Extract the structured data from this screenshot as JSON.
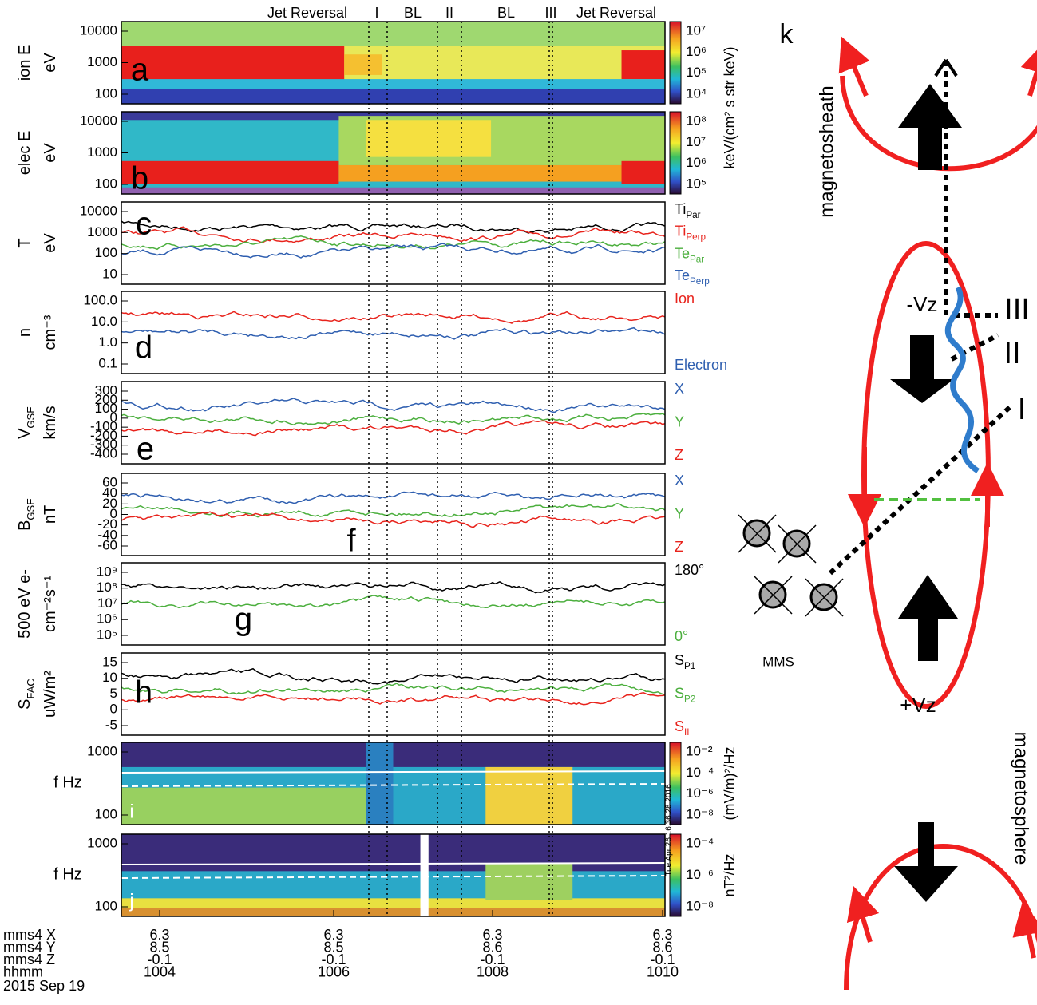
{
  "header": {
    "segments": [
      "Jet Reversal",
      "I",
      "BL",
      "II",
      "BL",
      "III",
      "Jet Reversal"
    ]
  },
  "panels": [
    {
      "letter": "a",
      "ylabel": [
        {
          "text": "ion E"
        },
        {
          "text": "eV"
        }
      ],
      "yticks": [
        "10000",
        "1000",
        "100"
      ],
      "colorbar": {
        "ticks": [
          "10⁷",
          "10⁶",
          "10⁵",
          "10⁴"
        ]
      }
    },
    {
      "letter": "b",
      "ylabel": [
        {
          "text": "elec E"
        },
        {
          "text": "eV"
        }
      ],
      "yticks": [
        "10000",
        "1000",
        "100"
      ],
      "colorbar": {
        "ticks": [
          "10⁸",
          "10⁷",
          "10⁶",
          "10⁵"
        ],
        "label": "keV/(cm² s str keV)"
      }
    },
    {
      "letter": "c",
      "ylabel": [
        {
          "text": "T"
        },
        {
          "text": "eV"
        }
      ],
      "yticks": [
        "10000",
        "1000",
        "100",
        "10"
      ],
      "legend": [
        {
          "text": "Ti",
          "sub": "Par",
          "color": "#000000"
        },
        {
          "text": "Ti",
          "sub": "Perp",
          "color": "#e8231c"
        },
        {
          "text": "Te",
          "sub": "Par",
          "color": "#4caf3e"
        },
        {
          "text": "Te",
          "sub": "Perp",
          "color": "#2f5fb0"
        }
      ]
    },
    {
      "letter": "d",
      "ylabel": [
        {
          "text": "n"
        },
        {
          "text": "cm⁻³"
        }
      ],
      "yticks": [
        "100.0",
        "10.0",
        "1.0",
        "0.1"
      ],
      "legend": [
        {
          "text": "Ion",
          "color": "#e8231c"
        },
        {
          "text": "Electron",
          "color": "#2f5fb0"
        }
      ]
    },
    {
      "letter": "e",
      "ylabel": [
        {
          "text": "V",
          "sub": "GSE"
        },
        {
          "text": "km/s"
        }
      ],
      "yticks": [
        "300",
        "200",
        "100",
        "0",
        "-100",
        "-200",
        "-300",
        "-400"
      ],
      "legend": [
        {
          "text": "X",
          "color": "#2f5fb0"
        },
        {
          "text": "Y",
          "color": "#4caf3e"
        },
        {
          "text": "Z",
          "color": "#e8231c"
        }
      ]
    },
    {
      "letter": "f",
      "ylabel": [
        {
          "text": "B",
          "sub": "GSE"
        },
        {
          "text": "nT"
        }
      ],
      "yticks": [
        "60",
        "40",
        "20",
        "0",
        "-20",
        "-40",
        "-60"
      ],
      "legend": [
        {
          "text": "X",
          "color": "#2f5fb0"
        },
        {
          "text": "Y",
          "color": "#4caf3e"
        },
        {
          "text": "Z",
          "color": "#e8231c"
        }
      ]
    },
    {
      "letter": "g",
      "ylabel": [
        {
          "text": "500 eV e-"
        },
        {
          "text": "cm⁻²s⁻¹"
        }
      ],
      "yticks": [
        "10⁹",
        "10⁸",
        "10⁷",
        "10⁶",
        "10⁵"
      ],
      "legend": [
        {
          "text": "180°",
          "color": "#000000"
        },
        {
          "text": "0°",
          "color": "#4caf3e"
        }
      ]
    },
    {
      "letter": "h",
      "ylabel": [
        {
          "text": "S",
          "sub": "FAC"
        },
        {
          "text": "uW/m²"
        }
      ],
      "yticks": [
        "15",
        "10",
        "5",
        "0",
        "-5"
      ],
      "legend": [
        {
          "text": "S",
          "sub": "P1",
          "color": "#000000"
        },
        {
          "text": "S",
          "sub": "P2",
          "color": "#4caf3e"
        },
        {
          "text": "S",
          "sub": "II",
          "color": "#e8231c"
        }
      ]
    },
    {
      "letter": "i",
      "ylabel": [
        {
          "text": "f Hz"
        }
      ],
      "yticks": [
        "1000",
        "100"
      ],
      "colorbar": {
        "ticks": [
          "10⁻²",
          "10⁻⁴",
          "10⁻⁶",
          "10⁻⁸"
        ],
        "label": "(mV/m)²/Hz"
      }
    },
    {
      "letter": "j",
      "ylabel": [
        {
          "text": "f Hz"
        }
      ],
      "yticks": [
        "1000",
        "100"
      ],
      "colorbar": {
        "ticks": [
          "10⁻⁴",
          "10⁻⁶",
          "10⁻⁸"
        ],
        "label": "nT²/Hz"
      },
      "stamp": "Tue Apr 26 16:36:28 2016"
    }
  ],
  "axis": {
    "rows": [
      "mms4 X",
      "mms4 Y",
      "mms4 Z",
      "hhmm"
    ],
    "columns": [
      [
        "6.3",
        "8.5",
        "-0.1",
        "1004"
      ],
      [
        "6.3",
        "8.5",
        "-0.1",
        "1006"
      ],
      [
        "6.3",
        "8.6",
        "-0.1",
        "1008"
      ],
      [
        "6.3",
        "8.6",
        "-0.1",
        "1010"
      ]
    ],
    "date": "2015 Sep 19"
  },
  "diagram": {
    "letter": "k",
    "magnetosheath": "magnetosheath",
    "magnetosphere": "magnetosphere",
    "minus_vz": "-Vz",
    "plus_vz": "+Vz",
    "mms": "MMS",
    "crossings": [
      "I",
      "II",
      "III"
    ]
  }
}
